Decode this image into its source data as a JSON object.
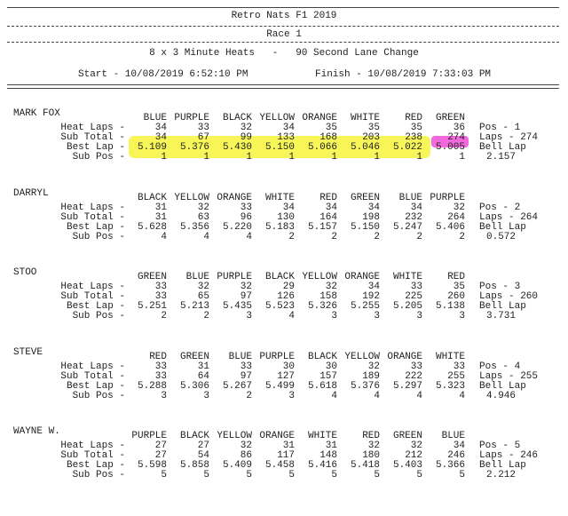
{
  "header": {
    "title": "Retro Nats F1 2019",
    "race": "Race 1",
    "heats": "8 x 3 Minute Heats   -   90 Second Lane Change",
    "start": "Start - 10/08/2019 6:52:10 PM",
    "finish": "Finish - 10/08/2019 7:33:03 PM"
  },
  "racers": [
    {
      "name": "MARK FOX",
      "lanes": [
        "BLUE",
        "PURPLE",
        "BLACK",
        "YELLOW",
        "ORANGE",
        "WHITE",
        "RED",
        "GREEN"
      ],
      "rows": [
        {
          "label": "Heat Laps -",
          "values": [
            "34",
            "33",
            "32",
            "34",
            "35",
            "35",
            "35",
            "36"
          ]
        },
        {
          "label": "Sub Total -",
          "values": [
            "34",
            "67",
            "99",
            "133",
            "168",
            "203",
            "238",
            "274"
          ]
        },
        {
          "label": "Best Lap -",
          "values": [
            "5.109",
            "5.376",
            "5.430",
            "5.150",
            "5.066",
            "5.046",
            "5.022",
            "5.005"
          ]
        },
        {
          "label": "Sub Pos -",
          "values": [
            "1",
            "1",
            "1",
            "1",
            "1",
            "1",
            "1",
            "1"
          ]
        }
      ],
      "summary": [
        "Pos - 1",
        "Laps - 274",
        "Bell Lap",
        "2.157"
      ]
    },
    {
      "name": "DARRYL",
      "lanes": [
        "BLACK",
        "YELLOW",
        "ORANGE",
        "WHITE",
        "RED",
        "GREEN",
        "BLUE",
        "PURPLE"
      ],
      "rows": [
        {
          "label": "Heat Laps -",
          "values": [
            "31",
            "32",
            "33",
            "34",
            "34",
            "34",
            "34",
            "32"
          ]
        },
        {
          "label": "Sub Total -",
          "values": [
            "31",
            "63",
            "96",
            "130",
            "164",
            "198",
            "232",
            "264"
          ]
        },
        {
          "label": "Best Lap -",
          "values": [
            "5.628",
            "5.356",
            "5.220",
            "5.183",
            "5.157",
            "5.150",
            "5.247",
            "5.406"
          ]
        },
        {
          "label": "Sub Pos -",
          "values": [
            "4",
            "4",
            "4",
            "2",
            "2",
            "2",
            "2",
            "2"
          ]
        }
      ],
      "summary": [
        "Pos - 2",
        "Laps - 264",
        "Bell Lap",
        "0.572"
      ]
    },
    {
      "name": "STOO",
      "lanes": [
        "GREEN",
        "BLUE",
        "PURPLE",
        "BLACK",
        "YELLOW",
        "ORANGE",
        "WHITE",
        "RED"
      ],
      "rows": [
        {
          "label": "Heat Laps -",
          "values": [
            "33",
            "32",
            "32",
            "29",
            "32",
            "34",
            "33",
            "35"
          ]
        },
        {
          "label": "Sub Total -",
          "values": [
            "33",
            "65",
            "97",
            "126",
            "158",
            "192",
            "225",
            "260"
          ]
        },
        {
          "label": "Best Lap -",
          "values": [
            "5.251",
            "5.213",
            "5.435",
            "5.523",
            "5.326",
            "5.255",
            "5.205",
            "5.138"
          ]
        },
        {
          "label": "Sub Pos -",
          "values": [
            "2",
            "2",
            "3",
            "4",
            "3",
            "3",
            "3",
            "3"
          ]
        }
      ],
      "summary": [
        "Pos - 3",
        "Laps - 260",
        "Bell Lap",
        "3.731"
      ]
    },
    {
      "name": "STEVE",
      "lanes": [
        "RED",
        "GREEN",
        "BLUE",
        "PURPLE",
        "BLACK",
        "YELLOW",
        "ORANGE",
        "WHITE"
      ],
      "rows": [
        {
          "label": "Heat Laps -",
          "values": [
            "33",
            "31",
            "33",
            "30",
            "30",
            "32",
            "33",
            "33"
          ]
        },
        {
          "label": "Sub Total -",
          "values": [
            "33",
            "64",
            "97",
            "127",
            "157",
            "189",
            "222",
            "255"
          ]
        },
        {
          "label": "Best Lap -",
          "values": [
            "5.288",
            "5.306",
            "5.267",
            "5.499",
            "5.618",
            "5.376",
            "5.297",
            "5.323"
          ]
        },
        {
          "label": "Sub Pos -",
          "values": [
            "3",
            "3",
            "2",
            "3",
            "4",
            "4",
            "4",
            "4"
          ]
        }
      ],
      "summary": [
        "Pos - 4",
        "Laps - 255",
        "Bell Lap",
        "4.946"
      ]
    },
    {
      "name": "WAYNE W.",
      "lanes": [
        "PURPLE",
        "BLACK",
        "YELLOW",
        "ORANGE",
        "WHITE",
        "RED",
        "GREEN",
        "BLUE"
      ],
      "rows": [
        {
          "label": "Heat Laps -",
          "values": [
            "27",
            "27",
            "32",
            "31",
            "31",
            "32",
            "32",
            "34"
          ]
        },
        {
          "label": "Sub Total -",
          "values": [
            "27",
            "54",
            "86",
            "117",
            "148",
            "180",
            "212",
            "246"
          ]
        },
        {
          "label": "Best Lap -",
          "values": [
            "5.598",
            "5.858",
            "5.409",
            "5.458",
            "5.416",
            "5.418",
            "5.403",
            "5.366"
          ]
        },
        {
          "label": "Sub Pos -",
          "values": [
            "5",
            "5",
            "5",
            "5",
            "5",
            "5",
            "5",
            "5"
          ]
        }
      ],
      "summary": [
        "Pos - 5",
        "Laps - 246",
        "Bell Lap",
        "2.212"
      ]
    }
  ]
}
